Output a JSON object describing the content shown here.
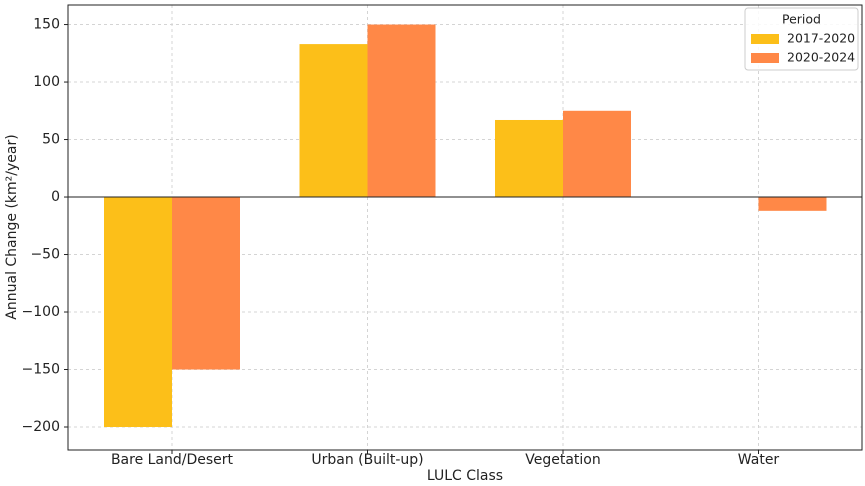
{
  "chart_data": {
    "type": "bar",
    "x_label": "LULC Class",
    "y_label": "Annual Change (km²/year)",
    "categories": [
      "Bare Land/Desert",
      "Urban (Built-up)",
      "Vegetation",
      "Water"
    ],
    "series": [
      {
        "name": "2017-2020",
        "color": "#fcbf19",
        "values": [
          -200,
          133,
          67,
          0
        ]
      },
      {
        "name": "2020-2024",
        "color": "#ff8847",
        "values": [
          -150,
          150,
          75,
          -12
        ]
      }
    ],
    "legend_title": "Period",
    "legend_position": "upper right",
    "ylim": [
      -220,
      167
    ],
    "yticks": [
      {
        "value": -200,
        "label": "−200"
      },
      {
        "value": -150,
        "label": "−150"
      },
      {
        "value": -100,
        "label": "−100"
      },
      {
        "value": -50,
        "label": "−50"
      },
      0,
      50,
      100,
      150
    ],
    "grid": true
  }
}
